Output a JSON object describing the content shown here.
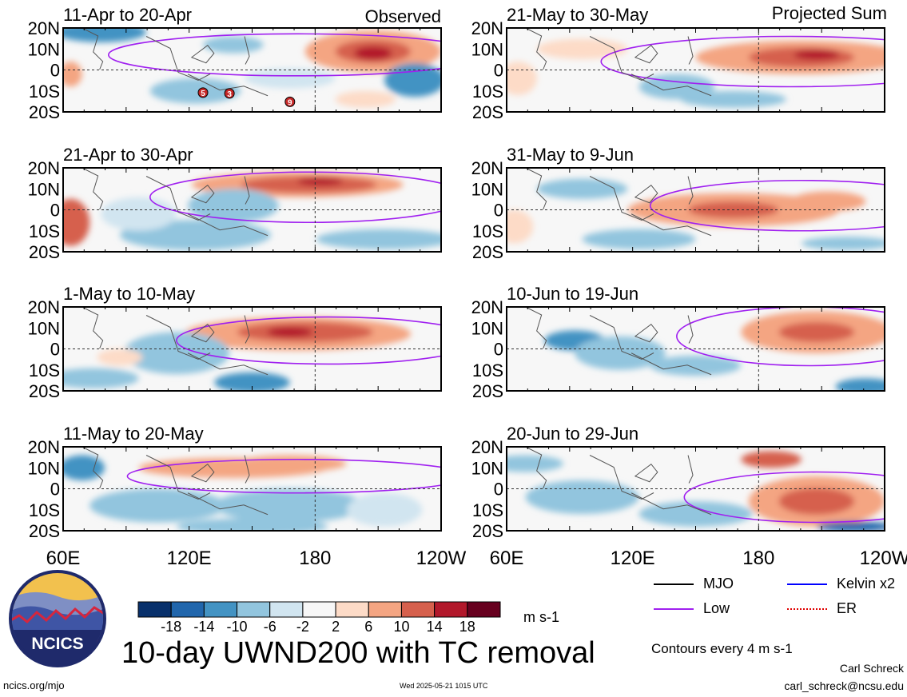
{
  "header": {
    "left_label": "Observed",
    "right_label": "Projected Sum"
  },
  "panels": [
    {
      "period": "11-Apr to 20-Apr",
      "column": "left",
      "row": 0
    },
    {
      "period": "21-Apr to 30-Apr",
      "column": "left",
      "row": 1
    },
    {
      "period": "1-May to 10-May",
      "column": "left",
      "row": 2
    },
    {
      "period": "11-May to 20-May",
      "column": "left",
      "row": 3
    },
    {
      "period": "21-May to 30-May",
      "column": "right",
      "row": 0
    },
    {
      "period": "31-May to 9-Jun",
      "column": "right",
      "row": 1
    },
    {
      "period": "10-Jun to 19-Jun",
      "column": "right",
      "row": 2
    },
    {
      "period": "20-Jun to 29-Jun",
      "column": "right",
      "row": 3
    }
  ],
  "chart_data": {
    "type": "heatmap",
    "title": "10-day UWND200 with TC removal",
    "latitude_ticks": [
      "20N",
      "10N",
      "0",
      "10S",
      "20S"
    ],
    "longitude_ticks": [
      "60E",
      "120E",
      "180",
      "120W"
    ],
    "xlim": [
      60,
      240
    ],
    "ylim": [
      -20,
      20
    ],
    "colorbar": {
      "unit": "m s-1",
      "tick_labels": [
        "-18",
        "-14",
        "-10",
        "-6",
        "-2",
        "2",
        "6",
        "10",
        "14",
        "18"
      ],
      "colors": [
        "#08306b",
        "#2166ac",
        "#4393c3",
        "#92c5de",
        "#d1e5f0",
        "#f7f7f7",
        "#fddbc7",
        "#f4a582",
        "#d6604d",
        "#b2182b",
        "#67001f"
      ]
    },
    "contour_note": "Contours every 4 m s-1",
    "legend": [
      {
        "label": "MJO",
        "color": "#000000",
        "style": "solid"
      },
      {
        "label": "Kelvin x2",
        "color": "#0000ff",
        "style": "solid"
      },
      {
        "label": "Low",
        "color": "#a020f0",
        "style": "solid"
      },
      {
        "label": "ER",
        "color": "#e00000",
        "style": "dotted"
      }
    ],
    "tc_markers_panel1": [
      "5",
      "3",
      "9"
    ]
  },
  "branding": {
    "logo_text": "NCICS",
    "site": "ncics.org/mjo",
    "timestamp": "Wed 2025-05-21 1015 UTC",
    "author": "Carl Schreck",
    "email": "carl_schreck@ncsu.edu"
  }
}
